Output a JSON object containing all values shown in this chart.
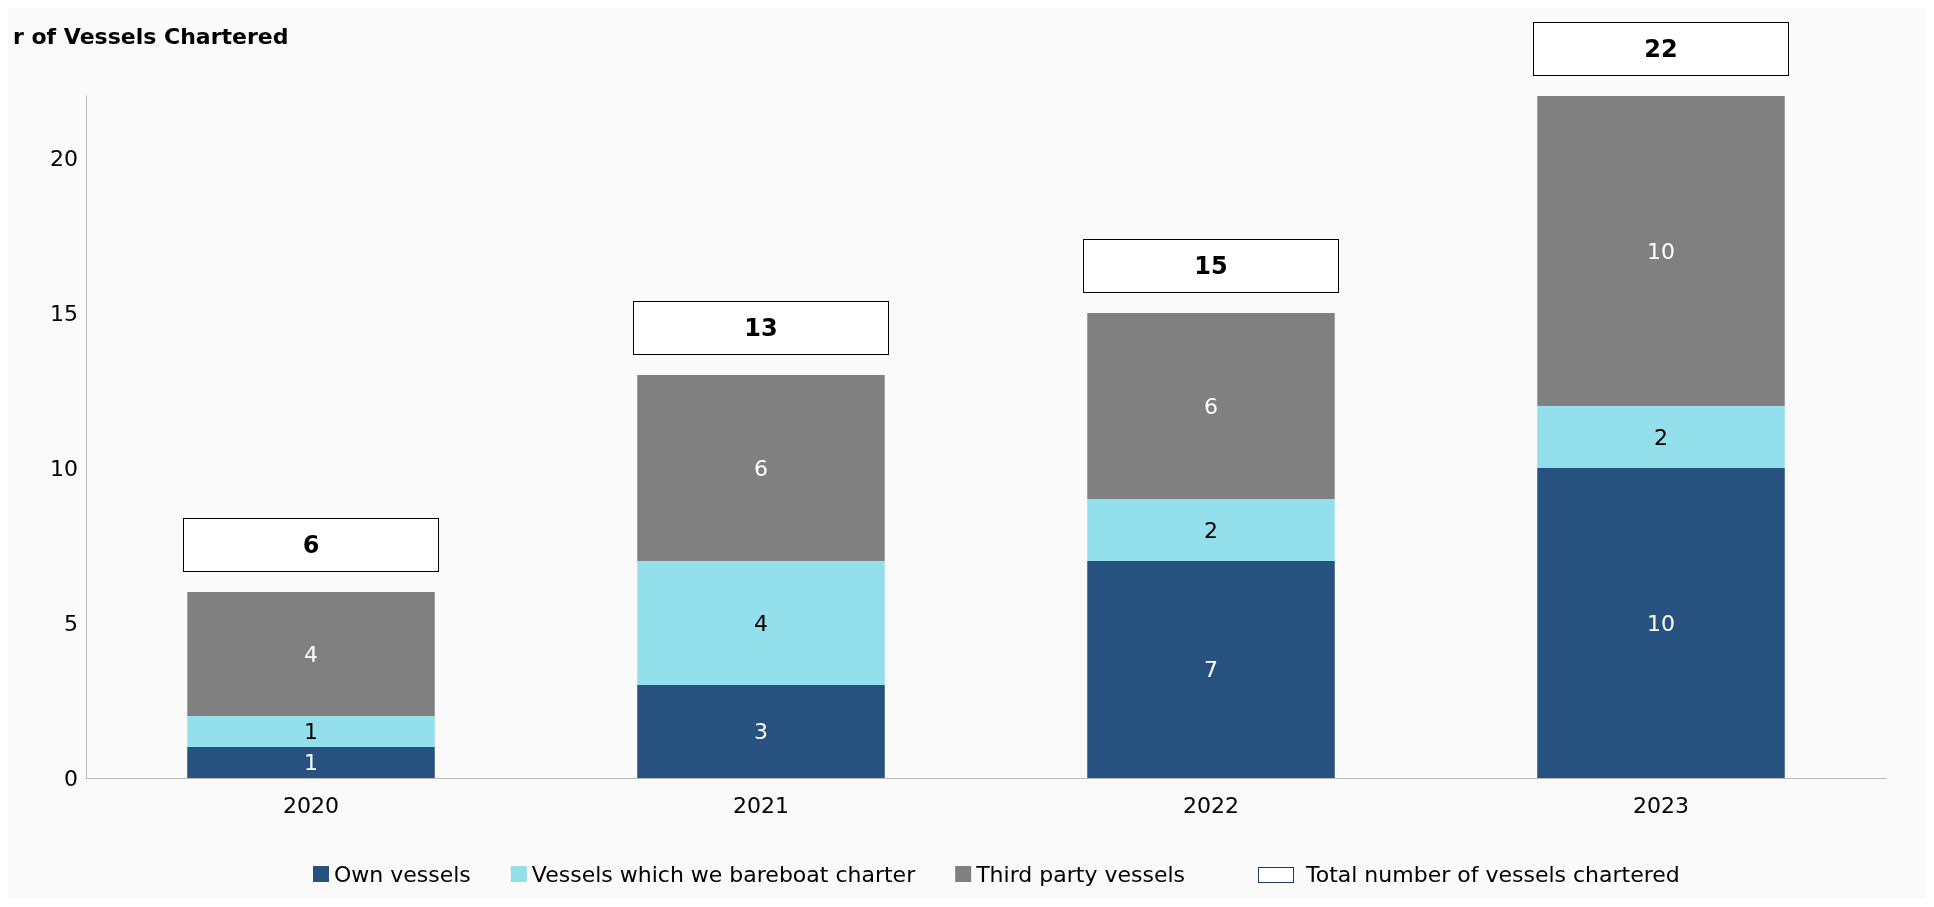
{
  "chart_data": {
    "type": "bar",
    "title": "r of Vessels Chartered",
    "categories": [
      "2020",
      "2021",
      "2022",
      "2023"
    ],
    "stacked": true,
    "series": [
      {
        "name": "Own vessels",
        "color": "#27527f",
        "values": [
          1,
          3,
          7,
          10
        ]
      },
      {
        "name": "Vessels which we bareboat charter",
        "color": "#93dfec",
        "values": [
          1,
          4,
          2,
          2
        ]
      },
      {
        "name": "Third party vessels",
        "color": "#808080",
        "values": [
          4,
          6,
          6,
          10
        ]
      }
    ],
    "totals": [
      "6",
      "13",
      "15",
      "22"
    ],
    "annotations": [
      "Total number of vessels chartered"
    ],
    "ylim": [
      0,
      22
    ],
    "yticks": [
      0,
      5,
      10,
      15,
      20
    ],
    "grid": false,
    "legend": "bottom",
    "data_labels": true
  }
}
